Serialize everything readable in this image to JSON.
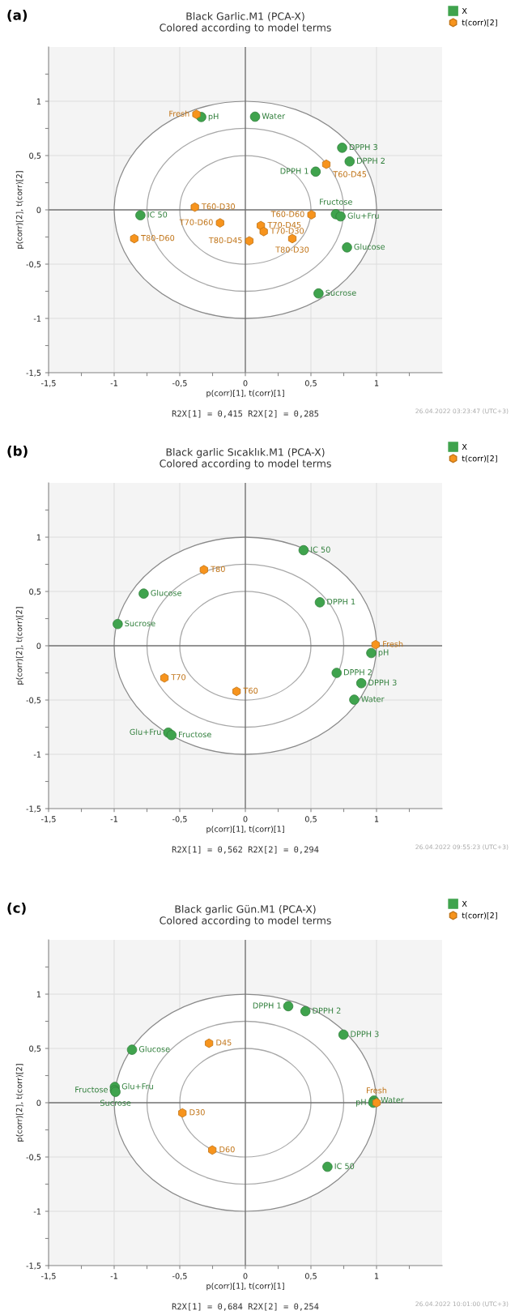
{
  "chart_data": [
    {
      "type": "scatter",
      "title": "Black Garlic.M1 (PCA-X)",
      "subtitle": "Colored according to model terms",
      "xlabel": "p(corr)[1], t(corr)[1]",
      "ylabel": "p(corr)[2], t(corr)[2]",
      "annotations": [
        "(a)",
        "R2X[1] = 0,415 R2X[2] = 0,285",
        "26.04.2022 03:23:47 (UTC+3)"
      ],
      "xlim": [
        -1.5,
        1.5
      ],
      "ylim": [
        -1.5,
        1.5
      ],
      "xticks": [
        {
          "value": -1.5,
          "label": "-1,5"
        },
        {
          "value": -1.25,
          "label": null
        },
        -1,
        {
          "value": -0.75,
          "label": null
        },
        {
          "value": -0.5,
          "label": "-0,5"
        },
        {
          "value": -0.25,
          "label": null
        },
        0,
        {
          "value": 0.25,
          "label": null
        },
        {
          "value": 0.5,
          "label": "0,5"
        },
        {
          "value": 0.75,
          "label": null
        },
        1,
        {
          "value": 1.25,
          "label": null
        }
      ],
      "yticks": [
        {
          "value": -1.5,
          "label": "-1,5"
        },
        {
          "value": -1.25,
          "label": null
        },
        -1,
        {
          "value": -0.75,
          "label": null
        },
        {
          "value": -0.5,
          "label": "-0,5"
        },
        {
          "value": -0.25,
          "label": null
        },
        0,
        {
          "value": 0.25,
          "label": null
        },
        {
          "value": 0.5,
          "label": "0,5"
        },
        {
          "value": 0.75,
          "label": null
        },
        1,
        {
          "value": 1.25,
          "label": null
        }
      ],
      "grid": true,
      "legend": "top right",
      "series": [
        {
          "name": "X",
          "color": "#3fa34d",
          "marker": "circle",
          "x": [
            -0.336,
            0.074,
            0.738,
            0.795,
            0.536,
            -0.8,
            0.69,
            0.726,
            0.775,
            0.558
          ],
          "values": [
            0.855,
            0.858,
            0.572,
            0.446,
            0.352,
            -0.05,
            -0.04,
            -0.06,
            -0.346,
            -0.77
          ],
          "value_labels": [
            "pH",
            "Water",
            "DPPH 3",
            "DPPH 2",
            "DPPH 1",
            "IC 50",
            "Fructose",
            "Glu+Fru",
            "Glucose",
            "Sucrose"
          ]
        },
        {
          "name": "t(corr)[2]",
          "color": "#f7941d",
          "x": [
            -0.373,
            0.617,
            -0.385,
            0.504,
            -0.193,
            0.118,
            0.14,
            0.03,
            -0.847,
            0.358
          ],
          "values": [
            0.88,
            0.42,
            0.025,
            -0.045,
            -0.12,
            -0.145,
            -0.2,
            -0.286,
            -0.265,
            -0.265
          ],
          "value_labels": [
            "Fresh",
            "T60-D45",
            "T60-D30",
            "T60-D60",
            "T70-D60",
            "T70-D45",
            "T70-D30",
            "T80-D45",
            "T80-D60",
            "T80-D30"
          ]
        }
      ]
    },
    {
      "type": "scatter",
      "title": "Black garlic Sıcaklık.M1 (PCA-X)",
      "subtitle": "Colored according to model terms",
      "xlabel": "p(corr)[1], t(corr)[1]",
      "ylabel": "p(corr)[2], t(corr)[2]",
      "annotations": [
        "(b)",
        "R2X[1] = 0,562 R2X[2] = 0,294",
        "26.04.2022 09:55:23 (UTC+3)"
      ],
      "xlim": [
        -1.5,
        1.5
      ],
      "ylim": [
        -1.5,
        1.5
      ],
      "xticks": [
        {
          "value": -1.5,
          "label": "-1,5"
        },
        {
          "value": -1.25,
          "label": null
        },
        -1,
        {
          "value": -0.75,
          "label": null
        },
        {
          "value": -0.5,
          "label": "-0,5"
        },
        {
          "value": -0.25,
          "label": null
        },
        0,
        {
          "value": 0.25,
          "label": null
        },
        {
          "value": 0.5,
          "label": "0,5"
        },
        {
          "value": 0.75,
          "label": null
        },
        1,
        {
          "value": 1.25,
          "label": null
        }
      ],
      "yticks": [
        {
          "value": -1.5,
          "label": "-1,5"
        },
        {
          "value": -1.25,
          "label": null
        },
        -1,
        {
          "value": -0.75,
          "label": null
        },
        {
          "value": -0.5,
          "label": "-0,5"
        },
        {
          "value": -0.25,
          "label": null
        },
        0,
        {
          "value": 0.25,
          "label": null
        },
        {
          "value": 0.5,
          "label": "0,5"
        },
        {
          "value": 0.75,
          "label": null
        },
        1,
        {
          "value": 1.25,
          "label": null
        }
      ],
      "grid": true,
      "legend": "top right",
      "series": [
        {
          "name": "X",
          "color": "#3fa34d",
          "marker": "circle",
          "x": [
            0.444,
            -0.775,
            0.568,
            -0.973,
            0.96,
            0.696,
            0.884,
            0.83,
            -0.588,
            -0.563
          ],
          "values": [
            0.88,
            0.48,
            0.4,
            0.2,
            -0.067,
            -0.25,
            -0.345,
            -0.497,
            -0.8,
            -0.823
          ],
          "value_labels": [
            "IC 50",
            "Glucose",
            "DPPH 1",
            "Sucrose",
            "pH",
            "DPPH 2",
            "DPPH 3",
            "Water",
            "Glu+Fru",
            "Fructose"
          ]
        },
        {
          "name": "t(corr)[2]",
          "color": "#f7941d",
          "x": [
            -0.316,
            0.993,
            -0.617,
            -0.067
          ],
          "values": [
            0.7,
            0.01,
            -0.296,
            -0.42
          ],
          "value_labels": [
            "T80",
            "Fresh",
            "T70",
            "T60"
          ]
        }
      ]
    },
    {
      "type": "scatter",
      "title": "Black garlic Gün.M1 (PCA-X)",
      "subtitle": "Colored according to model terms",
      "xlabel": "p(corr)[1], t(corr)[1]",
      "ylabel": "p(corr)[2], t(corr)[2]",
      "annotations": [
        "(c)",
        "R2X[1] = 0,684 R2X[2] = 0,254",
        "26.04.2022 10:01:00 (UTC+3)"
      ],
      "xlim": [
        -1.5,
        1.5
      ],
      "ylim": [
        -1.5,
        1.5
      ],
      "xticks": [
        {
          "value": -1.5,
          "label": "-1,5"
        },
        {
          "value": -1.25,
          "label": null
        },
        -1,
        {
          "value": -0.75,
          "label": null
        },
        {
          "value": -0.5,
          "label": "-0,5"
        },
        {
          "value": -0.25,
          "label": null
        },
        0,
        {
          "value": 0.25,
          "label": null
        },
        {
          "value": 0.5,
          "label": "0,5"
        },
        {
          "value": 0.75,
          "label": null
        },
        1,
        {
          "value": 1.25,
          "label": null
        }
      ],
      "yticks": [
        {
          "value": -1.5,
          "label": "-1,5"
        },
        {
          "value": -1.25,
          "label": null
        },
        -1,
        {
          "value": -0.75,
          "label": null
        },
        {
          "value": -0.5,
          "label": "-0,5"
        },
        {
          "value": -0.25,
          "label": null
        },
        0,
        {
          "value": 0.25,
          "label": null
        },
        {
          "value": 0.5,
          "label": "0,5"
        },
        {
          "value": 0.75,
          "label": null
        },
        1,
        {
          "value": 1.25,
          "label": null
        }
      ],
      "grid": true,
      "legend": "top right",
      "series": [
        {
          "name": "X",
          "color": "#3fa34d",
          "marker": "circle",
          "x": [
            0.327,
            0.458,
            0.748,
            -0.864,
            -0.995,
            -0.995,
            -0.99,
            0.98,
            0.975,
            0.626
          ],
          "values": [
            0.889,
            0.843,
            0.627,
            0.488,
            0.145,
            0.115,
            0.1,
            0.02,
            0.0,
            -0.59
          ],
          "value_labels": [
            "DPPH 1",
            "DPPH 2",
            "DPPH 3",
            "Glucose",
            "Glu+Fru",
            "Fructose",
            "Sucrose",
            "Water",
            "pH",
            "IC 50"
          ]
        },
        {
          "name": "t(corr)[2]",
          "color": "#f7941d",
          "x": [
            -0.277,
            1.0,
            -0.48,
            -0.252
          ],
          "values": [
            0.548,
            0.0,
            -0.094,
            -0.436
          ],
          "value_labels": [
            "D45",
            "Fresh",
            "D30",
            "D60"
          ]
        }
      ]
    }
  ]
}
